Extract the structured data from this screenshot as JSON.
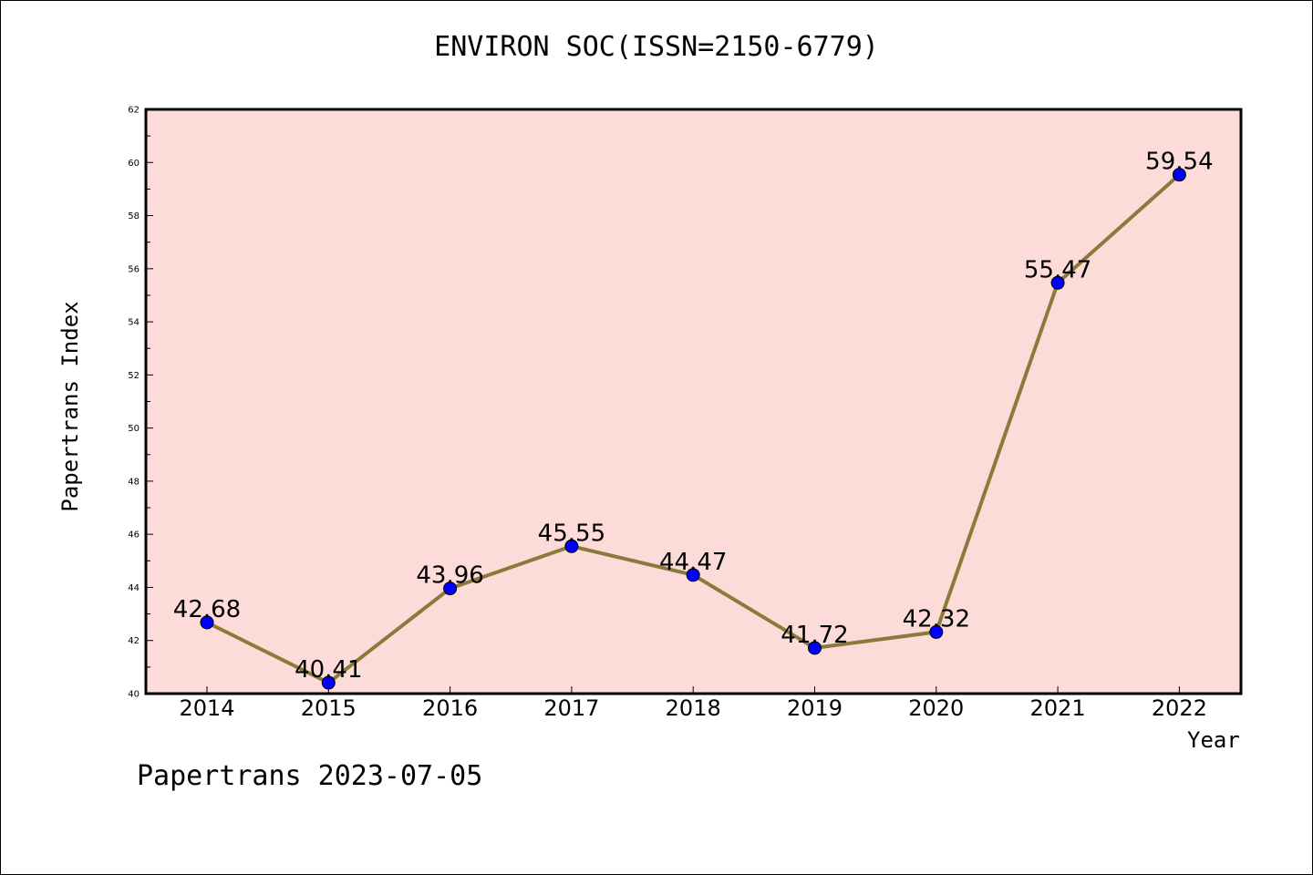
{
  "title": "ENVIRON SOC(ISSN=2150-6779)",
  "footer": "Papertrans 2023-07-05",
  "colors": {
    "plot_background": "#fddbd9",
    "line": "#8b7b3a",
    "marker": "#0000ff"
  },
  "chart_data": {
    "type": "line",
    "title": "ENVIRON SOC(ISSN=2150-6779)",
    "xlabel": "Year",
    "ylabel": "Papertrans Index",
    "categories": [
      "2014",
      "2015",
      "2016",
      "2017",
      "2018",
      "2019",
      "2020",
      "2021",
      "2022"
    ],
    "series": [
      {
        "values": [
          42.68,
          40.41,
          43.96,
          45.55,
          44.47,
          41.72,
          42.32,
          55.47,
          59.54
        ],
        "labels": [
          "42.68",
          "40.41",
          "43.96",
          "45.55",
          "44.47",
          "41.72",
          "42.32",
          "55.47",
          "59.54"
        ]
      }
    ],
    "yticks": [
      "40",
      "42",
      "44",
      "46",
      "48",
      "50",
      "52",
      "54",
      "56",
      "58",
      "60",
      "62"
    ],
    "ylim": [
      40,
      62
    ],
    "grid": false,
    "legend": "none"
  }
}
